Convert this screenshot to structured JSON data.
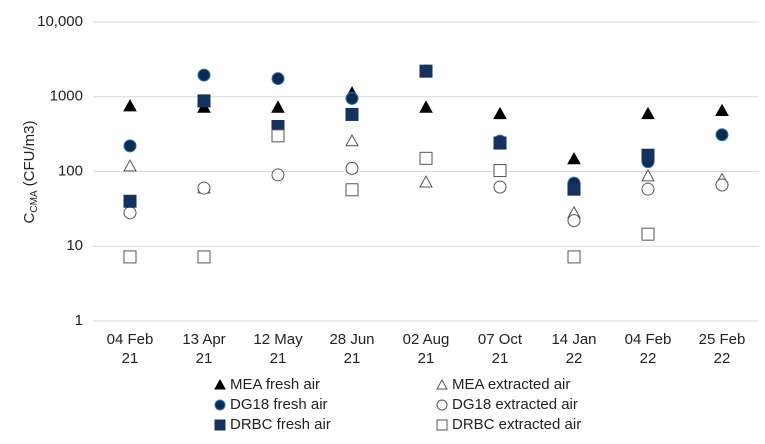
{
  "chart_data": {
    "type": "scatter",
    "y_label": [
      "C",
      "CMA",
      "(CFU/m3)"
    ],
    "categories": [
      [
        "04 Feb",
        "21"
      ],
      [
        "13 Apr",
        "21"
      ],
      [
        "12 May",
        "21"
      ],
      [
        "28 Jun",
        "21"
      ],
      [
        "02 Aug",
        "21"
      ],
      [
        "07 Oct",
        "21"
      ],
      [
        "14 Jan",
        "22"
      ],
      [
        "04 Feb",
        "22"
      ],
      [
        "25 Feb",
        "22"
      ]
    ],
    "ylim": [
      1,
      10000
    ],
    "log_scale": true,
    "grid": true,
    "yticks": [
      1,
      10,
      100,
      1000,
      {
        "value": 10000,
        "label": "10,000"
      }
    ],
    "series": [
      {
        "name": "MEA fresh air",
        "marker": "triangle",
        "filled": true,
        "color": "#000000",
        "values": [
          750,
          720,
          720,
          1120,
          720,
          590,
          147,
          590,
          650
        ]
      },
      {
        "name": "MEA extracted air",
        "marker": "triangle",
        "filled": false,
        "color": "#555555",
        "values": [
          118,
          60,
          330,
          256,
          72,
          null,
          28,
          87,
          78
        ]
      },
      {
        "name": "DG18 fresh air",
        "marker": "circle",
        "filled": true,
        "color": "#0d2b4e",
        "values": [
          220,
          1950,
          1750,
          950,
          2200,
          255,
          70,
          135,
          310
        ]
      },
      {
        "name": "DG18 extracted air",
        "marker": "circle",
        "filled": false,
        "color": "#555555",
        "values": [
          28,
          60,
          90,
          110,
          150,
          62,
          22,
          58,
          66
        ]
      },
      {
        "name": "DRBC fresh air",
        "marker": "square",
        "filled": true,
        "color": "#14325c",
        "values": [
          40,
          880,
          400,
          580,
          2200,
          240,
          58,
          165,
          null
        ]
      },
      {
        "name": "DRBC extracted air",
        "marker": "square",
        "filled": false,
        "color": "#555555",
        "values": [
          7.2,
          7.2,
          300,
          57,
          150,
          103,
          7.2,
          14.5,
          null
        ]
      }
    ]
  }
}
